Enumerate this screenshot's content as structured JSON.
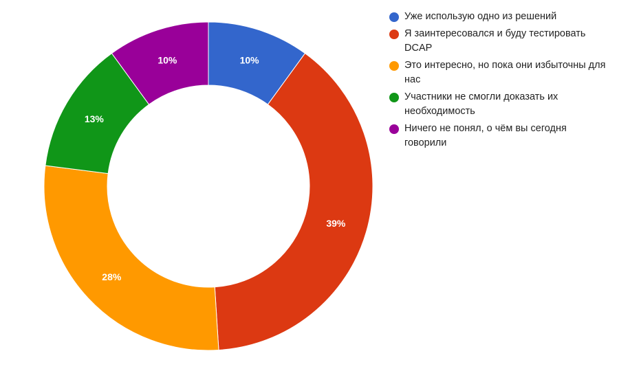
{
  "chart_data": {
    "type": "pie",
    "donut": true,
    "legend_position": "right",
    "slices": [
      {
        "label": "Уже использую одно из решений",
        "value": 10,
        "display": "10%",
        "color": "#3366cc"
      },
      {
        "label": "Я заинтересовался и буду тестировать DCAP",
        "value": 39,
        "display": "39%",
        "color": "#dc3912"
      },
      {
        "label": "Это интересно, но пока они избыточны для нас",
        "value": 28,
        "display": "28%",
        "color": "#ff9900"
      },
      {
        "label": "Участники не смогли доказать их необходимость",
        "value": 13,
        "display": "13%",
        "color": "#109618"
      },
      {
        "label": "Ничего не понял, о чём вы сегодня говорили",
        "value": 10,
        "display": "10%",
        "color": "#990099"
      }
    ]
  }
}
